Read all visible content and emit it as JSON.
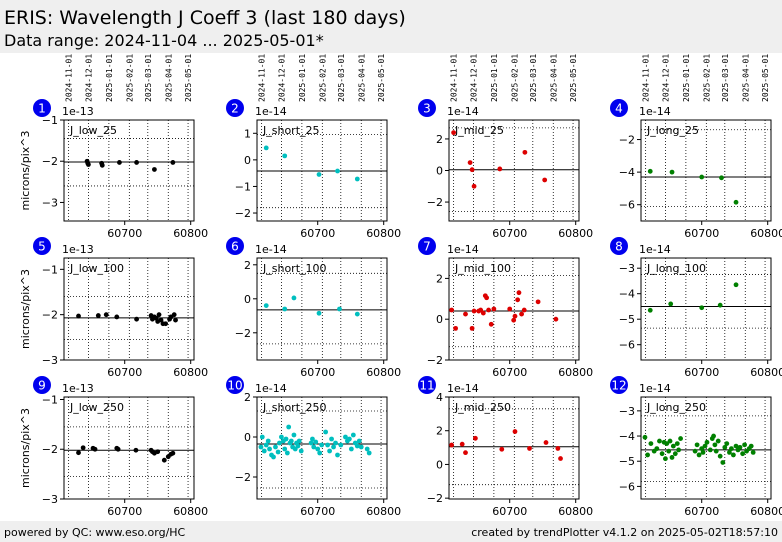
{
  "header": {
    "title": "ERIS: Wavelength J Coeff 3 (last 180 days)",
    "subtitle": "Data range: 2024-11-04 ... 2025-05-01*"
  },
  "footer": {
    "left": "powered by QC: www.eso.org/HC",
    "right": "created by trendPlotter v4.1.2 on 2025-05-02T18:57:10"
  },
  "colors": {
    "low": "#000000",
    "short": "#00bfbf",
    "mid": "#dd0000",
    "long": "#008000",
    "badge": "#0000ee"
  },
  "date_ticks": [
    {
      "label": "2024-11-01",
      "mjd": 60615
    },
    {
      "label": "2024-12-01",
      "mjd": 60645
    },
    {
      "label": "2025-01-01",
      "mjd": 60676
    },
    {
      "label": "2025-02-01",
      "mjd": 60707
    },
    {
      "label": "2025-03-01",
      "mjd": 60735
    },
    {
      "label": "2025-04-01",
      "mjd": 60766
    },
    {
      "label": "2025-05-01",
      "mjd": 60796
    }
  ],
  "x_ticks": [
    60700,
    60800
  ],
  "xlim": [
    60608,
    60805
  ],
  "ylabel": "microns/pix^3",
  "chart_data": [
    {
      "type": "scatter",
      "number": "1",
      "label": "J_low_25",
      "color": "low",
      "multiplier": "1e-13",
      "ylim": [
        -3.45,
        -1.0
      ],
      "yticks": [
        -3,
        -2,
        -1
      ],
      "ref": -2.02,
      "grid": [
        -2.6,
        -1.45
      ],
      "x": [
        60643,
        60644,
        60645,
        60665,
        60666,
        60692,
        60718,
        60745,
        60773
      ],
      "y": [
        -2.0,
        -2.05,
        -2.08,
        -2.05,
        -2.1,
        -2.03,
        -2.03,
        -2.2,
        -2.03
      ]
    },
    {
      "type": "scatter",
      "number": "2",
      "label": "J_short_25",
      "color": "short",
      "multiplier": "1e-14",
      "ylim": [
        -2.3,
        1.5
      ],
      "yticks": [
        -2,
        -1,
        0,
        1
      ],
      "ref": -0.42,
      "grid": [
        -1.8,
        0.95
      ],
      "x": [
        60622,
        60650,
        60702,
        60730,
        60760
      ],
      "y": [
        0.45,
        0.15,
        -0.55,
        -0.42,
        -0.72
      ]
    },
    {
      "type": "scatter",
      "number": "3",
      "label": "J_mid_25",
      "color": "mid",
      "multiplier": "1e-14",
      "ylim": [
        -3.2,
        3.2
      ],
      "yticks": [
        -2,
        0,
        2
      ],
      "ref": 0.05,
      "grid": [
        -2.6,
        2.7
      ],
      "x": [
        60615,
        60640,
        60643,
        60646,
        60685,
        60723,
        60753
      ],
      "y": [
        2.4,
        0.5,
        0.05,
        -1.0,
        0.1,
        1.15,
        -0.6
      ]
    },
    {
      "type": "scatter",
      "number": "4",
      "label": "J_long_25",
      "color": "long",
      "multiplier": "1e-14",
      "ylim": [
        -7.0,
        -0.8
      ],
      "yticks": [
        -6,
        -4,
        -2
      ],
      "ref": -4.3,
      "grid": [
        -6.1,
        -1.4
      ],
      "x": [
        60622,
        60655,
        60700,
        60730,
        60752
      ],
      "y": [
        -3.95,
        -4.0,
        -4.3,
        -4.35,
        -5.85
      ]
    },
    {
      "type": "scatter",
      "number": "5",
      "label": "J_low_100",
      "color": "low",
      "multiplier": "1e-13",
      "ylim": [
        -3.0,
        -0.75
      ],
      "yticks": [
        -3,
        -2,
        -1
      ],
      "ref": -2.07,
      "grid": [
        -2.55,
        -1.6
      ],
      "x": [
        60630,
        60660,
        60672,
        60688,
        60718,
        60740,
        60742,
        60745,
        60748,
        60750,
        60752,
        60755,
        60758,
        60762,
        60768,
        60770,
        60775,
        60777
      ],
      "y": [
        -2.03,
        -2.02,
        -2.0,
        -2.05,
        -2.1,
        -2.02,
        -2.1,
        -2.05,
        -2.08,
        -2.15,
        -2.0,
        -2.12,
        -2.2,
        -2.2,
        -2.1,
        -2.05,
        -2.0,
        -2.12
      ]
    },
    {
      "type": "scatter",
      "number": "6",
      "label": "J_short_100",
      "color": "short",
      "multiplier": "1e-14",
      "ylim": [
        -3.6,
        2.4
      ],
      "yticks": [
        -2,
        0,
        2
      ],
      "ref": -0.65,
      "grid": [
        -2.65,
        1.5
      ],
      "x": [
        60622,
        60650,
        60664,
        60702,
        60733,
        60760
      ],
      "y": [
        -0.4,
        -0.6,
        0.05,
        -0.85,
        -0.6,
        -0.9
      ]
    },
    {
      "type": "scatter",
      "number": "7",
      "label": "J_mid_100",
      "color": "mid",
      "multiplier": "1e-14",
      "ylim": [
        -2.0,
        3.0
      ],
      "yticks": [
        -2,
        0,
        2
      ],
      "ref": 0.4,
      "grid": [
        -1.35,
        2.15
      ],
      "x": [
        60612,
        60618,
        60633,
        60643,
        60646,
        60653,
        60656,
        60660,
        60663,
        60665,
        60668,
        60672,
        60676,
        60700,
        60706,
        60708,
        60712,
        60714,
        60718,
        60722,
        60743,
        60770
      ],
      "y": [
        0.45,
        -0.45,
        0.25,
        -0.45,
        0.4,
        0.4,
        0.45,
        0.3,
        1.15,
        1.05,
        0.45,
        -0.25,
        0.5,
        0.5,
        -0.05,
        0.15,
        0.95,
        1.3,
        0.25,
        0.45,
        0.85,
        0.0
      ]
    },
    {
      "type": "scatter",
      "number": "8",
      "label": "J_long_100",
      "color": "long",
      "multiplier": "1e-14",
      "ylim": [
        -6.6,
        -2.6
      ],
      "yticks": [
        -6,
        -5,
        -4,
        -3
      ],
      "ref": -4.5,
      "grid": [
        -5.35,
        -3.25
      ],
      "x": [
        60622,
        60653,
        60700,
        60728,
        60752
      ],
      "y": [
        -4.65,
        -4.4,
        -4.55,
        -4.45,
        -3.65
      ]
    },
    {
      "type": "scatter",
      "number": "9",
      "label": "J_low_250",
      "color": "low",
      "multiplier": "1e-13",
      "ylim": [
        -3.0,
        -0.95
      ],
      "yticks": [
        -3,
        -2,
        -1
      ],
      "ref": -2.02,
      "grid": [
        -2.55,
        -1.55
      ],
      "x": [
        60630,
        60637,
        60652,
        60655,
        60688,
        60690,
        60717,
        60740,
        60742,
        60745,
        60750,
        60760,
        60766,
        60770,
        60773
      ],
      "y": [
        -2.07,
        -1.97,
        -1.98,
        -2.0,
        -1.98,
        -2.0,
        -2.02,
        -2.02,
        -2.05,
        -2.08,
        -2.05,
        -2.22,
        -2.15,
        -2.1,
        -2.08
      ]
    },
    {
      "type": "scatter",
      "number": "10",
      "label": "J_short_250",
      "color": "short",
      "multiplier": "1e-14",
      "ylim": [
        -3.1,
        2.0
      ],
      "yticks": [
        -2,
        0,
        2
      ],
      "ref": -0.35,
      "grid": [
        -2.55,
        1.3
      ],
      "x": [
        60614,
        60616,
        60619,
        60622,
        60625,
        60627,
        60630,
        60633,
        60636,
        60640,
        60642,
        60645,
        60648,
        60650,
        60652,
        60654,
        60656,
        60658,
        60660,
        60662,
        60664,
        60666,
        60668,
        60670,
        60672,
        60675,
        60690,
        60692,
        60694,
        60697,
        60700,
        60703,
        60706,
        60712,
        60715,
        60718,
        60721,
        60724,
        60727,
        60730,
        60735,
        60742,
        60745,
        60748,
        60751,
        60754,
        60757,
        60760,
        60763,
        60766,
        60775,
        60778
      ],
      "y": [
        -0.5,
        0.0,
        -0.7,
        -0.4,
        -0.2,
        -0.6,
        -0.9,
        -1.0,
        -0.5,
        -0.75,
        -0.3,
        0.0,
        -0.2,
        -0.6,
        -0.1,
        -0.8,
        0.5,
        -0.3,
        -0.2,
        -0.5,
        0.1,
        -0.6,
        -0.3,
        -0.45,
        -0.2,
        -0.7,
        -0.3,
        -0.1,
        -0.5,
        -0.25,
        -0.6,
        -0.8,
        -0.4,
        0.25,
        -0.4,
        -0.7,
        -0.1,
        -0.5,
        -0.3,
        -0.9,
        -0.4,
        0.0,
        -0.2,
        -0.1,
        -0.6,
        0.1,
        -0.3,
        -0.45,
        -0.2,
        -0.5,
        -0.6,
        -0.8
      ]
    },
    {
      "type": "scatter",
      "number": "11",
      "label": "J_mid_250",
      "color": "mid",
      "multiplier": "1e-14",
      "ylim": [
        -2.05,
        4.0
      ],
      "yticks": [
        -2,
        0,
        2,
        4
      ],
      "ref": 1.05,
      "grid": [
        -1.2,
        3.3
      ],
      "x": [
        60612,
        60628,
        60633,
        60648,
        60688,
        60708,
        60730,
        60755,
        60773,
        60777
      ],
      "y": [
        1.15,
        1.2,
        0.7,
        1.55,
        0.9,
        1.95,
        0.95,
        1.3,
        0.95,
        0.35
      ]
    },
    {
      "type": "scatter",
      "number": "12",
      "label": "J_long_250",
      "color": "long",
      "multiplier": "1e-14",
      "ylim": [
        -6.5,
        -2.45
      ],
      "yticks": [
        -6,
        -5,
        -4,
        -3
      ],
      "ref": -4.55,
      "grid": [
        -5.8,
        -3.2
      ],
      "x": [
        60614,
        60618,
        60623,
        60628,
        60632,
        60636,
        60640,
        60643,
        60645,
        60647,
        60650,
        60652,
        60655,
        60657,
        60660,
        60663,
        60665,
        60668,
        60690,
        60693,
        60696,
        60700,
        60702,
        60705,
        60708,
        60713,
        60716,
        60718,
        60720,
        60722,
        60725,
        60728,
        60732,
        60735,
        60738,
        60742,
        60745,
        60748,
        60752,
        60755,
        60758,
        60762,
        60765,
        60768,
        60772,
        60775,
        60778
      ],
      "y": [
        -4.05,
        -4.75,
        -4.3,
        -4.6,
        -4.5,
        -4.2,
        -4.7,
        -4.25,
        -4.9,
        -4.3,
        -4.6,
        -4.2,
        -4.85,
        -4.4,
        -4.7,
        -4.3,
        -4.55,
        -4.1,
        -4.6,
        -4.35,
        -4.75,
        -4.5,
        -4.65,
        -4.4,
        -4.25,
        -4.55,
        -4.1,
        -4.0,
        -4.35,
        -4.6,
        -4.2,
        -4.8,
        -5.05,
        -4.45,
        -4.3,
        -4.65,
        -4.5,
        -4.75,
        -4.4,
        -4.55,
        -4.45,
        -4.7,
        -4.35,
        -4.6,
        -4.5,
        -4.4,
        -4.65
      ]
    }
  ]
}
